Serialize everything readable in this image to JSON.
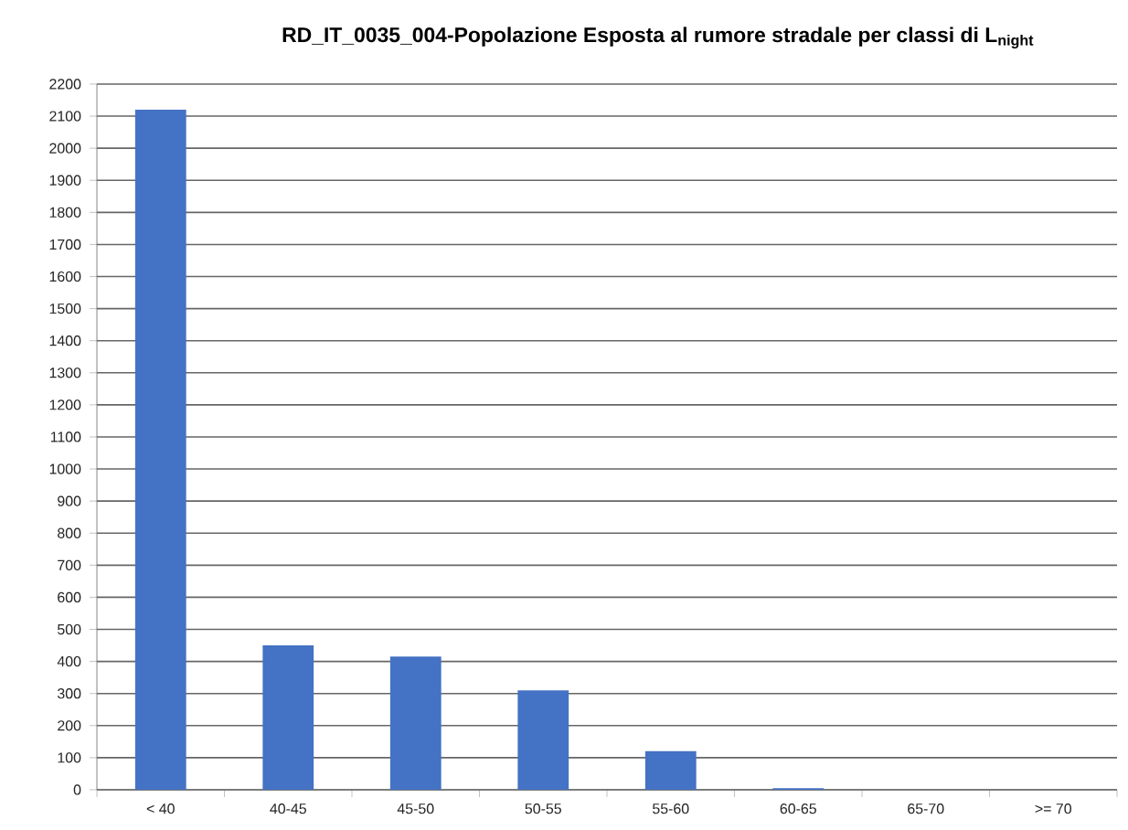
{
  "chart_data": {
    "type": "bar",
    "title": "RD_IT_0035_004-Popolazione Esposta al rumore stradale per classi di L$_{night}$",
    "categories": [
      "< 40",
      "40-45",
      "45-50",
      "50-55",
      "55-60",
      "60-65",
      "65-70",
      ">= 70"
    ],
    "values": [
      2120,
      450,
      415,
      310,
      120,
      5,
      0,
      0
    ],
    "color": "#4472c4",
    "ylim": [
      0,
      2200
    ],
    "yticks": [
      0,
      100,
      200,
      300,
      400,
      500,
      600,
      700,
      800,
      900,
      1000,
      1100,
      1200,
      1300,
      1400,
      1500,
      1600,
      1700,
      1800,
      1900,
      2000,
      2100,
      2200
    ],
    "grid": "y"
  }
}
